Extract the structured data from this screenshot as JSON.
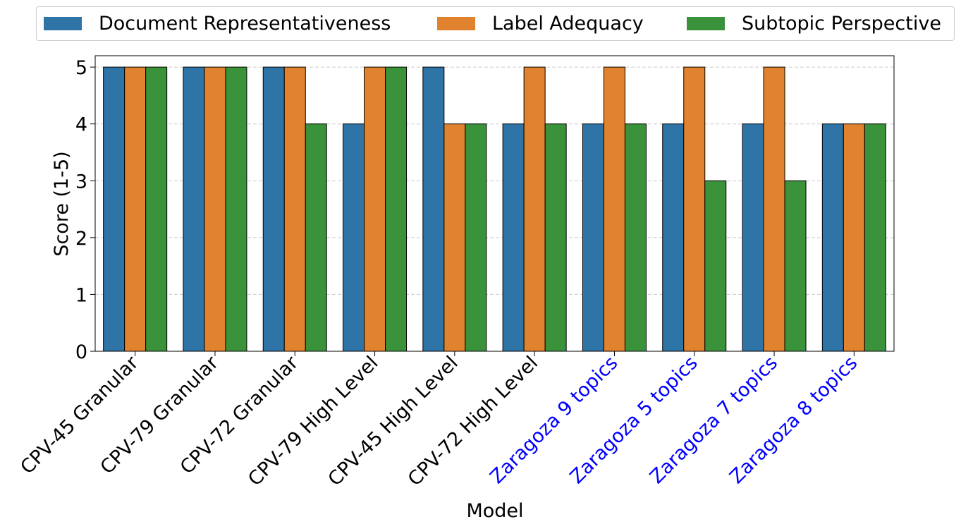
{
  "chart_data": {
    "type": "bar",
    "xlabel": "Model",
    "ylabel": "Score (1-5)",
    "ylim": [
      0,
      5.2
    ],
    "yticks": [
      0,
      1,
      2,
      3,
      4,
      5
    ],
    "grid": "horizontal dashed",
    "legend_position": "top",
    "categories": [
      "CPV-45 Granular",
      "CPV-79 Granular",
      "CPV-72 Granular",
      "CPV-79 High Level",
      "CPV-45 High Level",
      "CPV-72 High Level",
      "Zaragoza 9 topics",
      "Zaragoza 5 topics",
      "Zaragoza 7 topics",
      "Zaragoza 8 topics"
    ],
    "category_colors": [
      "#000000",
      "#000000",
      "#000000",
      "#000000",
      "#000000",
      "#000000",
      "#0000ff",
      "#0000ff",
      "#0000ff",
      "#0000ff"
    ],
    "series": [
      {
        "name": "Document Representativeness",
        "color": "#2e74a6",
        "values": [
          5,
          5,
          5,
          4,
          5,
          4,
          4,
          4,
          4,
          4
        ]
      },
      {
        "name": "Label Adequacy",
        "color": "#e1822e",
        "values": [
          5,
          5,
          5,
          5,
          4,
          5,
          5,
          5,
          5,
          4
        ]
      },
      {
        "name": "Subtopic Perspective",
        "color": "#3a923a",
        "values": [
          5,
          5,
          4,
          5,
          4,
          4,
          4,
          3,
          3,
          4
        ]
      }
    ]
  }
}
